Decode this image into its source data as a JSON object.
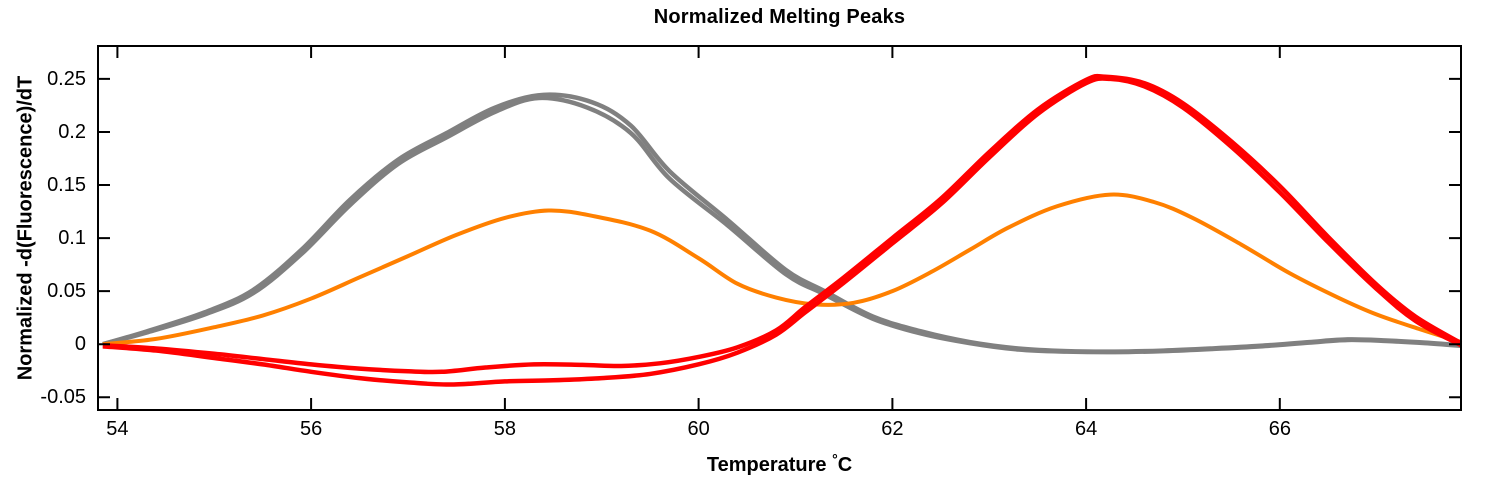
{
  "figure": {
    "background": "#ffffff",
    "axis_color": "#000000",
    "text_color": "#000000"
  },
  "chart_data": {
    "type": "line",
    "title": "Normalized Melting Peaks",
    "xlabel": "Temperature °C",
    "xlabel_parts": {
      "text": "Temperature ",
      "degree": "°",
      "unit": "C"
    },
    "ylabel": "Normalized -d(Fluorescence)/dT",
    "xlim": [
      53.8,
      67.87
    ],
    "ylim": [
      -0.062,
      0.281
    ],
    "xticks": [
      54,
      56,
      58,
      60,
      62,
      64,
      66
    ],
    "xtick_labels": [
      "54",
      "56",
      "58",
      "60",
      "62",
      "64",
      "66"
    ],
    "yticks": [
      -0.05,
      0,
      0.05,
      0.1,
      0.15,
      0.2,
      0.25
    ],
    "ytick_labels": [
      "-0.05",
      "0",
      "0.05",
      "0.1",
      "0.15",
      "0.2",
      "0.25"
    ],
    "grid": false,
    "legend_position": "none",
    "series": [
      {
        "name": "gray-1",
        "color": "#808080",
        "line_width": 4.5,
        "points": [
          [
            53.85,
            0.0
          ],
          [
            54.3,
            0.012
          ],
          [
            54.9,
            0.03
          ],
          [
            55.4,
            0.051
          ],
          [
            55.9,
            0.089
          ],
          [
            56.4,
            0.136
          ],
          [
            56.9,
            0.174
          ],
          [
            57.4,
            0.199
          ],
          [
            57.9,
            0.223
          ],
          [
            58.4,
            0.235
          ],
          [
            58.9,
            0.228
          ],
          [
            59.3,
            0.206
          ],
          [
            59.7,
            0.163
          ],
          [
            60.3,
            0.117
          ],
          [
            60.9,
            0.07
          ],
          [
            61.3,
            0.05
          ],
          [
            61.8,
            0.026
          ],
          [
            62.3,
            0.012
          ],
          [
            62.8,
            0.002
          ],
          [
            63.3,
            -0.004
          ],
          [
            63.8,
            -0.0065
          ],
          [
            64.3,
            -0.007
          ],
          [
            64.8,
            -0.006
          ],
          [
            65.3,
            -0.004
          ],
          [
            65.8,
            -0.0015
          ],
          [
            66.3,
            0.002
          ],
          [
            66.7,
            0.0045
          ],
          [
            67.1,
            0.0035
          ],
          [
            67.5,
            0.0015
          ],
          [
            67.87,
            -0.001
          ]
        ]
      },
      {
        "name": "gray-2",
        "color": "#808080",
        "line_width": 4.5,
        "points": [
          [
            53.85,
            0.0
          ],
          [
            54.3,
            0.011
          ],
          [
            54.9,
            0.028
          ],
          [
            55.4,
            0.048
          ],
          [
            55.9,
            0.085
          ],
          [
            56.4,
            0.131
          ],
          [
            56.9,
            0.17
          ],
          [
            57.4,
            0.195
          ],
          [
            57.9,
            0.219
          ],
          [
            58.35,
            0.232
          ],
          [
            58.85,
            0.223
          ],
          [
            59.3,
            0.199
          ],
          [
            59.7,
            0.156
          ],
          [
            60.3,
            0.112
          ],
          [
            60.9,
            0.066
          ],
          [
            61.3,
            0.047
          ],
          [
            61.8,
            0.024
          ],
          [
            62.3,
            0.01
          ],
          [
            62.8,
            0.001
          ],
          [
            63.3,
            -0.005
          ],
          [
            63.8,
            -0.007
          ],
          [
            64.3,
            -0.0075
          ],
          [
            64.8,
            -0.0065
          ],
          [
            65.3,
            -0.0045
          ],
          [
            65.8,
            -0.002
          ],
          [
            66.3,
            0.0015
          ],
          [
            66.7,
            0.004
          ],
          [
            67.1,
            0.003
          ],
          [
            67.5,
            0.001
          ],
          [
            67.87,
            -0.0015
          ]
        ]
      },
      {
        "name": "orange",
        "color": "#ff8000",
        "line_width": 4,
        "points": [
          [
            53.85,
            0.0
          ],
          [
            54.4,
            0.005
          ],
          [
            55.0,
            0.016
          ],
          [
            55.5,
            0.027
          ],
          [
            56.0,
            0.043
          ],
          [
            56.5,
            0.063
          ],
          [
            57.0,
            0.083
          ],
          [
            57.5,
            0.103
          ],
          [
            58.0,
            0.119
          ],
          [
            58.45,
            0.126
          ],
          [
            58.9,
            0.121
          ],
          [
            59.5,
            0.107
          ],
          [
            60.0,
            0.081
          ],
          [
            60.4,
            0.057
          ],
          [
            60.8,
            0.044
          ],
          [
            61.2,
            0.0375
          ],
          [
            61.6,
            0.039
          ],
          [
            62.0,
            0.05
          ],
          [
            62.4,
            0.068
          ],
          [
            62.8,
            0.089
          ],
          [
            63.2,
            0.11
          ],
          [
            63.7,
            0.13
          ],
          [
            64.25,
            0.141
          ],
          [
            64.7,
            0.134
          ],
          [
            65.1,
            0.119
          ],
          [
            65.6,
            0.094
          ],
          [
            66.1,
            0.067
          ],
          [
            66.6,
            0.044
          ],
          [
            67.0,
            0.028
          ],
          [
            67.45,
            0.014
          ],
          [
            67.87,
            0.002
          ]
        ]
      },
      {
        "name": "red-1",
        "color": "#ff0000",
        "line_width": 4.5,
        "points": [
          [
            53.85,
            -0.001
          ],
          [
            54.4,
            -0.004
          ],
          [
            55.0,
            -0.009
          ],
          [
            55.5,
            -0.014
          ],
          [
            56.0,
            -0.019
          ],
          [
            56.5,
            -0.023
          ],
          [
            57.0,
            -0.0255
          ],
          [
            57.35,
            -0.026
          ],
          [
            57.8,
            -0.022
          ],
          [
            58.3,
            -0.019
          ],
          [
            58.8,
            -0.0195
          ],
          [
            59.2,
            -0.0205
          ],
          [
            59.6,
            -0.018
          ],
          [
            60.0,
            -0.012
          ],
          [
            60.4,
            -0.003
          ],
          [
            60.8,
            0.013
          ],
          [
            61.1,
            0.035
          ],
          [
            61.5,
            0.063
          ],
          [
            62.0,
            0.1
          ],
          [
            62.5,
            0.137
          ],
          [
            63.0,
            0.181
          ],
          [
            63.5,
            0.221
          ],
          [
            64.0,
            0.249
          ],
          [
            64.2,
            0.252
          ],
          [
            64.6,
            0.246
          ],
          [
            65.0,
            0.227
          ],
          [
            65.5,
            0.191
          ],
          [
            66.0,
            0.149
          ],
          [
            66.5,
            0.101
          ],
          [
            67.0,
            0.056
          ],
          [
            67.4,
            0.026
          ],
          [
            67.87,
            0.001
          ]
        ]
      },
      {
        "name": "red-2",
        "color": "#ff0000",
        "line_width": 4.5,
        "points": [
          [
            53.85,
            -0.002
          ],
          [
            54.4,
            -0.006
          ],
          [
            55.0,
            -0.013
          ],
          [
            55.5,
            -0.019
          ],
          [
            56.0,
            -0.026
          ],
          [
            56.5,
            -0.032
          ],
          [
            57.0,
            -0.036
          ],
          [
            57.45,
            -0.038
          ],
          [
            58.0,
            -0.035
          ],
          [
            58.5,
            -0.034
          ],
          [
            59.0,
            -0.032
          ],
          [
            59.5,
            -0.028
          ],
          [
            60.0,
            -0.019
          ],
          [
            60.4,
            -0.008
          ],
          [
            60.8,
            0.009
          ],
          [
            61.1,
            0.03
          ],
          [
            61.5,
            0.058
          ],
          [
            62.0,
            0.095
          ],
          [
            62.5,
            0.132
          ],
          [
            63.0,
            0.176
          ],
          [
            63.5,
            0.217
          ],
          [
            64.0,
            0.246
          ],
          [
            64.25,
            0.25
          ],
          [
            64.6,
            0.243
          ],
          [
            65.0,
            0.223
          ],
          [
            65.5,
            0.186
          ],
          [
            66.0,
            0.143
          ],
          [
            66.5,
            0.096
          ],
          [
            67.0,
            0.052
          ],
          [
            67.4,
            0.022
          ],
          [
            67.87,
            -0.001
          ]
        ]
      }
    ]
  }
}
